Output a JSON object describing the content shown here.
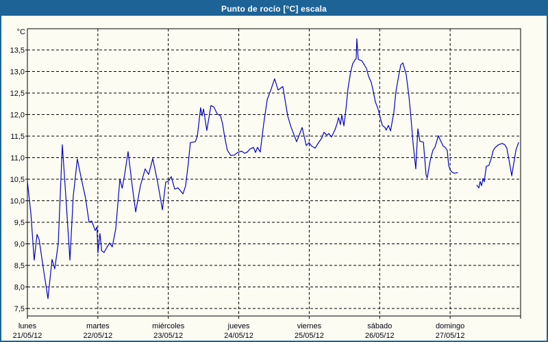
{
  "window": {
    "title": "Punto de rocío [°C] escala"
  },
  "chart_data": {
    "type": "line",
    "title": "Punto de rocío [°C] escala",
    "unit_label": "°C",
    "legend": "none",
    "grid": "dashed",
    "colors": {
      "line": "#0000c8",
      "frame": "#1d6396",
      "axis": "#000000",
      "text": "#000014",
      "background": "#fcfcf2"
    },
    "ylabel": "°C",
    "ylim": [
      7.33,
      14.0
    ],
    "y_ticks": [
      13.5,
      13.0,
      12.5,
      12.0,
      11.5,
      11.0,
      10.5,
      10.0,
      9.5,
      9.0,
      8.5,
      8.0,
      7.5
    ],
    "decimal_separator": ",",
    "x_axis_unit": "hours",
    "x_span_hours": 168,
    "x_ticks": [
      {
        "day": "lunes",
        "date": "21/05/12"
      },
      {
        "day": "martes",
        "date": "22/05/12"
      },
      {
        "day": "miércoles",
        "date": "23/05/12"
      },
      {
        "day": "jueves",
        "date": "24/05/12"
      },
      {
        "day": "viernes",
        "date": "25/05/12"
      },
      {
        "day": "sábado",
        "date": "26/05/12"
      },
      {
        "day": "domingo",
        "date": "27/05/12"
      }
    ],
    "series": [
      {
        "name": "Punto de rocío",
        "color": "#0000c8",
        "note": "two segments - data gap early domingo",
        "segments": [
          [
            [
              0,
              10.45
            ],
            [
              1.2,
              9.7
            ],
            [
              2.3,
              8.62
            ],
            [
              3.3,
              9.22
            ],
            [
              4.0,
              9.1
            ],
            [
              5.4,
              8.45
            ],
            [
              7.0,
              7.73
            ],
            [
              8.4,
              8.64
            ],
            [
              9.3,
              8.42
            ],
            [
              10.5,
              9.0
            ],
            [
              11.9,
              11.3
            ],
            [
              13.1,
              10.1
            ],
            [
              14.5,
              8.62
            ],
            [
              15.6,
              10.1
            ],
            [
              17.0,
              10.97
            ],
            [
              18.4,
              10.5
            ],
            [
              19.8,
              10.06
            ],
            [
              21.0,
              9.5
            ],
            [
              21.9,
              9.53
            ],
            [
              23.1,
              9.31
            ],
            [
              23.7,
              9.39
            ],
            [
              24.0,
              8.79
            ],
            [
              24.7,
              9.24
            ],
            [
              25.3,
              8.84
            ],
            [
              26.1,
              8.8
            ],
            [
              27.1,
              8.92
            ],
            [
              28.0,
              9.02
            ],
            [
              28.9,
              8.93
            ],
            [
              30.1,
              9.35
            ],
            [
              31.5,
              10.5
            ],
            [
              32.3,
              10.29
            ],
            [
              33.1,
              10.6
            ],
            [
              34.3,
              11.14
            ],
            [
              35.7,
              10.35
            ],
            [
              36.9,
              9.74
            ],
            [
              38.5,
              10.35
            ],
            [
              40.1,
              10.74
            ],
            [
              41.3,
              10.61
            ],
            [
              42.7,
              10.98
            ],
            [
              44.3,
              10.45
            ],
            [
              46.0,
              9.79
            ],
            [
              47.1,
              10.43
            ],
            [
              48.1,
              10.46
            ],
            [
              49.0,
              10.56
            ],
            [
              50.2,
              10.27
            ],
            [
              51.3,
              10.3
            ],
            [
              53.0,
              10.16
            ],
            [
              53.9,
              10.35
            ],
            [
              54.8,
              10.87
            ],
            [
              55.5,
              11.35
            ],
            [
              57.2,
              11.37
            ],
            [
              57.9,
              11.5
            ],
            [
              59.0,
              12.16
            ],
            [
              59.5,
              11.97
            ],
            [
              60.0,
              12.13
            ],
            [
              61.1,
              11.63
            ],
            [
              62.5,
              12.21
            ],
            [
              63.5,
              12.18
            ],
            [
              64.6,
              12.02
            ],
            [
              65.8,
              11.97
            ],
            [
              66.5,
              11.78
            ],
            [
              67.2,
              11.48
            ],
            [
              68.1,
              11.17
            ],
            [
              69.3,
              11.05
            ],
            [
              70.5,
              11.06
            ],
            [
              71.6,
              11.12
            ],
            [
              73.0,
              11.15
            ],
            [
              74.0,
              11.1
            ],
            [
              74.9,
              11.13
            ],
            [
              75.8,
              11.2
            ],
            [
              77.0,
              11.24
            ],
            [
              77.7,
              11.12
            ],
            [
              78.4,
              11.24
            ],
            [
              79.3,
              11.13
            ],
            [
              80.5,
              11.79
            ],
            [
              81.7,
              12.35
            ],
            [
              82.8,
              12.55
            ],
            [
              84.2,
              12.83
            ],
            [
              85.4,
              12.57
            ],
            [
              87.0,
              12.65
            ],
            [
              88.7,
              11.96
            ],
            [
              89.8,
              11.71
            ],
            [
              91.7,
              11.37
            ],
            [
              93.6,
              11.7
            ],
            [
              95.0,
              11.28
            ],
            [
              95.9,
              11.35
            ],
            [
              96.8,
              11.27
            ],
            [
              98.0,
              11.22
            ],
            [
              99.2,
              11.35
            ],
            [
              100.3,
              11.46
            ],
            [
              101.0,
              11.59
            ],
            [
              102.0,
              11.52
            ],
            [
              102.7,
              11.56
            ],
            [
              103.6,
              11.48
            ],
            [
              104.8,
              11.65
            ],
            [
              105.5,
              11.79
            ],
            [
              106.0,
              11.93
            ],
            [
              106.6,
              11.77
            ],
            [
              107.1,
              11.99
            ],
            [
              107.8,
              11.74
            ],
            [
              108.5,
              12.12
            ],
            [
              109.2,
              12.6
            ],
            [
              110.1,
              12.99
            ],
            [
              110.8,
              13.18
            ],
            [
              111.5,
              13.26
            ],
            [
              112.0,
              13.3
            ],
            [
              112.2,
              13.76
            ],
            [
              112.7,
              13.28
            ],
            [
              113.9,
              13.25
            ],
            [
              114.8,
              13.15
            ],
            [
              115.5,
              13.07
            ],
            [
              116.2,
              12.89
            ],
            [
              117.1,
              12.75
            ],
            [
              117.8,
              12.54
            ],
            [
              118.5,
              12.3
            ],
            [
              119.5,
              12.12
            ],
            [
              119.9,
              12.01
            ],
            [
              120.9,
              11.75
            ],
            [
              121.8,
              11.7
            ],
            [
              122.2,
              11.64
            ],
            [
              123.0,
              11.75
            ],
            [
              123.7,
              11.62
            ],
            [
              124.8,
              12.04
            ],
            [
              125.5,
              12.52
            ],
            [
              126.5,
              12.91
            ],
            [
              127.2,
              13.15
            ],
            [
              127.9,
              13.2
            ],
            [
              129.0,
              12.94
            ],
            [
              130.0,
              12.41
            ],
            [
              130.7,
              11.9
            ],
            [
              131.4,
              11.32
            ],
            [
              132.3,
              10.74
            ],
            [
              133.0,
              11.67
            ],
            [
              133.7,
              11.38
            ],
            [
              134.9,
              11.36
            ],
            [
              135.8,
              10.6
            ],
            [
              136.2,
              10.53
            ],
            [
              137.2,
              10.93
            ],
            [
              138.1,
              11.17
            ],
            [
              138.8,
              11.24
            ],
            [
              140.0,
              11.51
            ],
            [
              140.7,
              11.4
            ],
            [
              141.6,
              11.27
            ],
            [
              142.3,
              11.24
            ],
            [
              143.0,
              11.17
            ],
            [
              143.5,
              10.82
            ],
            [
              144.0,
              10.72
            ],
            [
              144.7,
              10.66
            ],
            [
              145.4,
              10.64
            ],
            [
              146.5,
              10.65
            ]
          ],
          [
            [
              153.1,
              10.36
            ],
            [
              153.8,
              10.3
            ],
            [
              154.2,
              10.45
            ],
            [
              154.7,
              10.35
            ],
            [
              155.2,
              10.52
            ],
            [
              155.6,
              10.44
            ],
            [
              156.3,
              10.8
            ],
            [
              157.2,
              10.82
            ],
            [
              158.0,
              10.98
            ],
            [
              158.7,
              11.17
            ],
            [
              159.4,
              11.24
            ],
            [
              160.5,
              11.3
            ],
            [
              161.7,
              11.33
            ],
            [
              162.6,
              11.3
            ],
            [
              163.3,
              11.22
            ],
            [
              164.0,
              10.96
            ],
            [
              165.0,
              10.58
            ],
            [
              165.7,
              10.88
            ],
            [
              166.4,
              11.17
            ],
            [
              167.3,
              11.35
            ]
          ]
        ]
      }
    ]
  }
}
